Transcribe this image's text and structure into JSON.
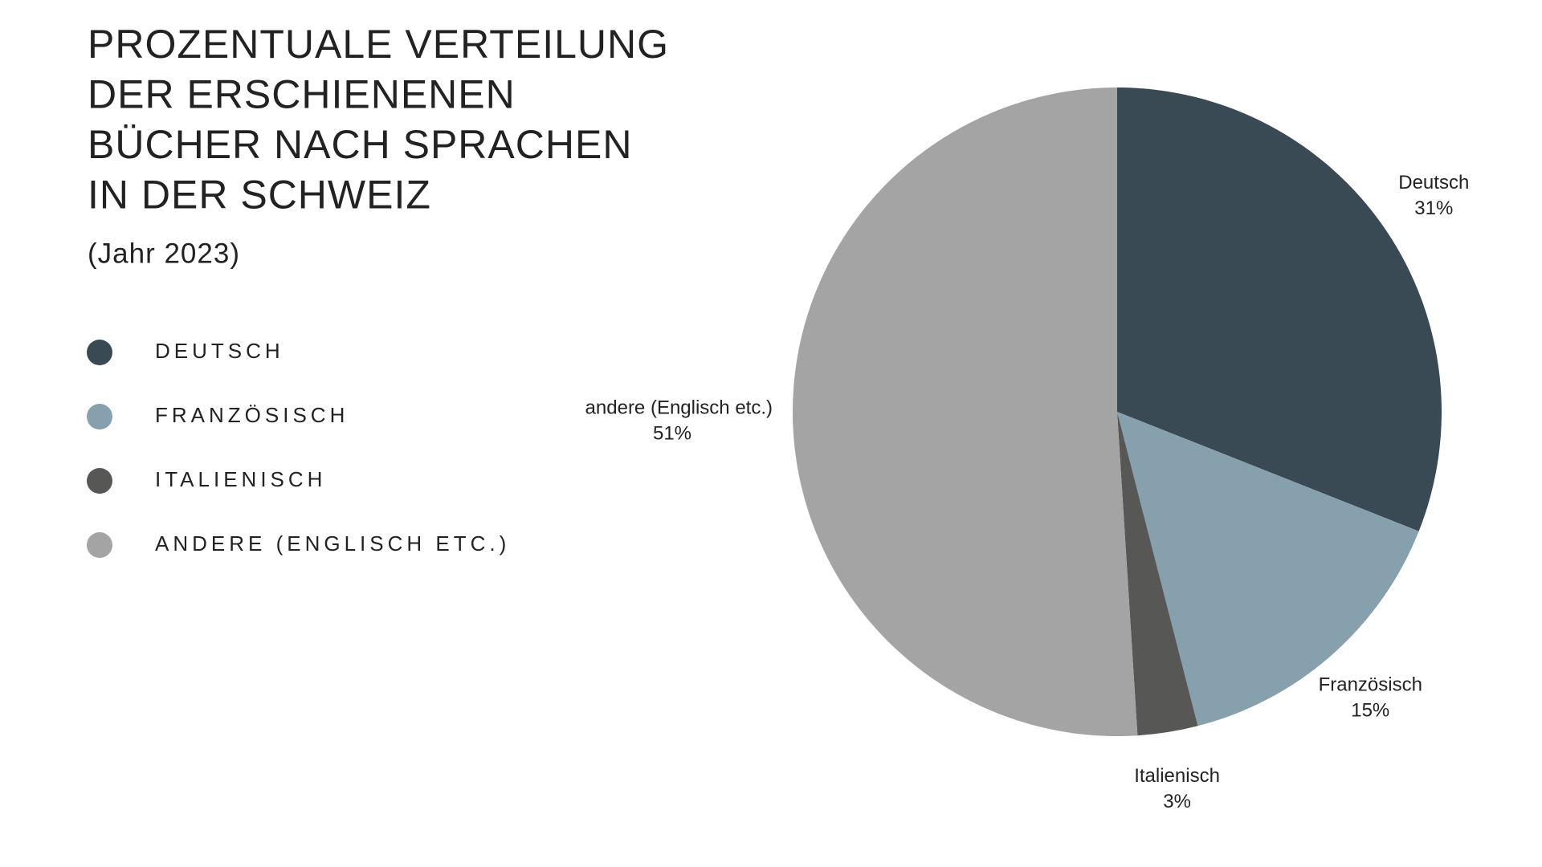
{
  "chart_data": {
    "type": "pie",
    "title": [
      "PROZENTUALE VERTEILUNG",
      "DER ERSCHIENENEN",
      "BÜCHER NACH SPRACHEN",
      "IN DER SCHWEIZ"
    ],
    "subtitle": "(Jahr 2023)",
    "categories": [
      "Deutsch",
      "Französisch",
      "Italienisch",
      "andere (Englisch etc.)"
    ],
    "values": [
      31,
      15,
      3,
      51
    ],
    "value_labels": [
      "31%",
      "15%",
      "3%",
      "51%"
    ],
    "colors": [
      "#3a4a54",
      "#87a0ad",
      "#575756",
      "#a4a4a4"
    ],
    "legend": "left"
  }
}
